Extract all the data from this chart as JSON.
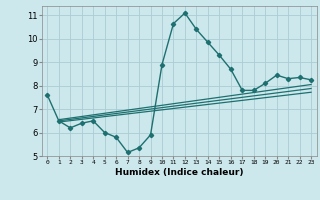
{
  "xlabel": "Humidex (Indice chaleur)",
  "xlim": [
    -0.5,
    23.5
  ],
  "ylim": [
    5,
    11.4
  ],
  "yticks": [
    5,
    6,
    7,
    8,
    9,
    10,
    11
  ],
  "xticks": [
    0,
    1,
    2,
    3,
    4,
    5,
    6,
    7,
    8,
    9,
    10,
    11,
    12,
    13,
    14,
    15,
    16,
    17,
    18,
    19,
    20,
    21,
    22,
    23
  ],
  "bg_color": "#cce8ec",
  "grid_color": "#aaccd4",
  "line_color": "#1e7070",
  "main_x": [
    0,
    1,
    2,
    3,
    4,
    5,
    6,
    7,
    8,
    9,
    10,
    11,
    12,
    13,
    14,
    15,
    16,
    17,
    18,
    19,
    20,
    21,
    22,
    23
  ],
  "main_y": [
    7.6,
    6.5,
    6.2,
    6.4,
    6.5,
    6.0,
    5.8,
    5.15,
    5.35,
    5.9,
    8.9,
    10.65,
    11.1,
    10.4,
    9.85,
    9.3,
    8.7,
    7.8,
    7.8,
    8.1,
    8.45,
    8.3,
    8.35,
    8.25
  ],
  "trend_lines": [
    {
      "x": [
        1,
        23
      ],
      "y": [
        6.55,
        8.05
      ]
    },
    {
      "x": [
        1,
        23
      ],
      "y": [
        6.5,
        7.88
      ]
    },
    {
      "x": [
        1,
        23
      ],
      "y": [
        6.45,
        7.72
      ]
    }
  ]
}
